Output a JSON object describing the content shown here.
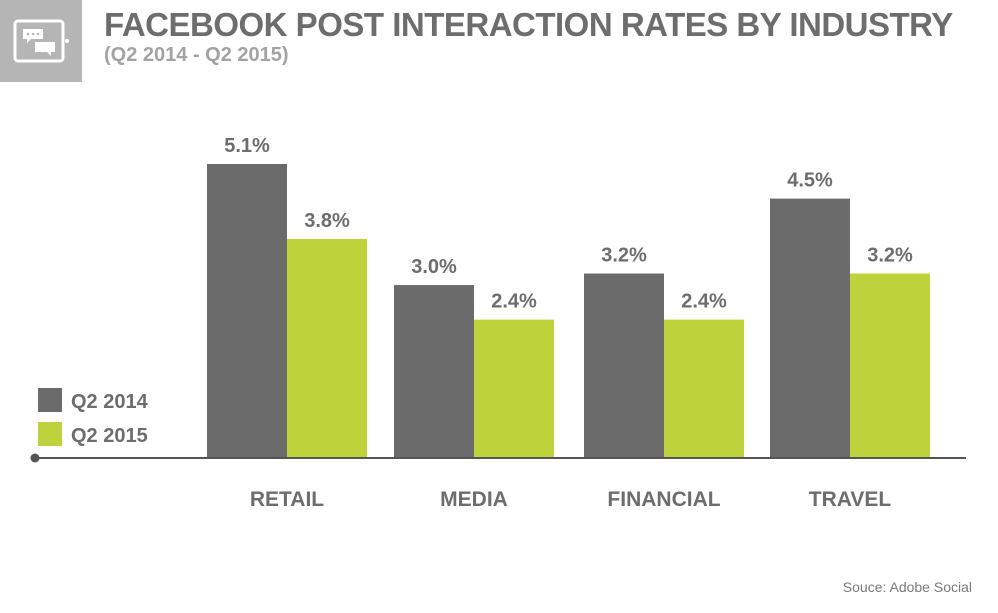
{
  "header": {
    "title": "FACEBOOK POST INTERACTION RATES BY INDUSTRY",
    "subtitle": "(Q2 2014 - Q2 2015)",
    "icon": "chat-bubbles-icon"
  },
  "source": "Souce: Adobe Social",
  "colors": {
    "q2_2014": "#6b6b6b",
    "q2_2015": "#bdd23b",
    "text": "#6d6d6d",
    "axis": "#555555"
  },
  "chart_data": {
    "type": "bar",
    "title": "FACEBOOK POST INTERACTION RATES BY INDUSTRY",
    "subtitle": "(Q2 2014 - Q2 2015)",
    "categories": [
      "RETAIL",
      "MEDIA",
      "FINANCIAL",
      "TRAVEL"
    ],
    "series": [
      {
        "name": "Q2 2014",
        "values": [
          5.1,
          3.0,
          3.2,
          4.5
        ],
        "labels": [
          "5.1%",
          "3.0%",
          "3.2%",
          "4.5%"
        ],
        "color": "#6b6b6b"
      },
      {
        "name": "Q2 2015",
        "values": [
          3.8,
          2.4,
          2.4,
          3.2
        ],
        "labels": [
          "3.8%",
          "2.4%",
          "2.4%",
          "3.2%"
        ],
        "color": "#bdd23b"
      }
    ],
    "ylim": [
      0,
      5.1
    ],
    "grid": false,
    "legend": "bottom-left",
    "xlabel": "",
    "ylabel": ""
  }
}
